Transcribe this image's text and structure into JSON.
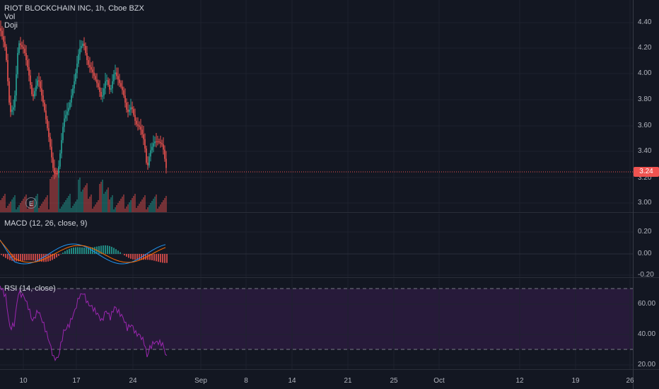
{
  "legend": {
    "symbol": "RIOT BLOCKCHAIN INC, 1h, Cboe BZX",
    "indicator_1": "Vol",
    "indicator_2": "Doji"
  },
  "price_axis": {
    "ticks": [
      "4.40",
      "4.20",
      "4.00",
      "3.80",
      "3.60",
      "3.40",
      "3.20",
      "3.00"
    ]
  },
  "last_price": "3.24",
  "earnings_marker": "E",
  "macd": {
    "label": "MACD (12, 26, close, 9)",
    "ticks": [
      "0.20",
      "0.00",
      "-0.20"
    ]
  },
  "rsi": {
    "label": "RSI (14, close)",
    "ticks": [
      "60.00",
      "40.00",
      "20.00"
    ]
  },
  "time_axis": {
    "ticks": [
      "10",
      "17",
      "24",
      "Sep",
      "8",
      "14",
      "21",
      "25",
      "Oct",
      "12",
      "19",
      "26"
    ]
  },
  "colors": {
    "up": "#26a69a",
    "down": "#ef5350",
    "background": "#131722",
    "rsi": "#9c27b0",
    "macd_line": "#2196f3",
    "signal_line": "#ff6d00"
  }
}
